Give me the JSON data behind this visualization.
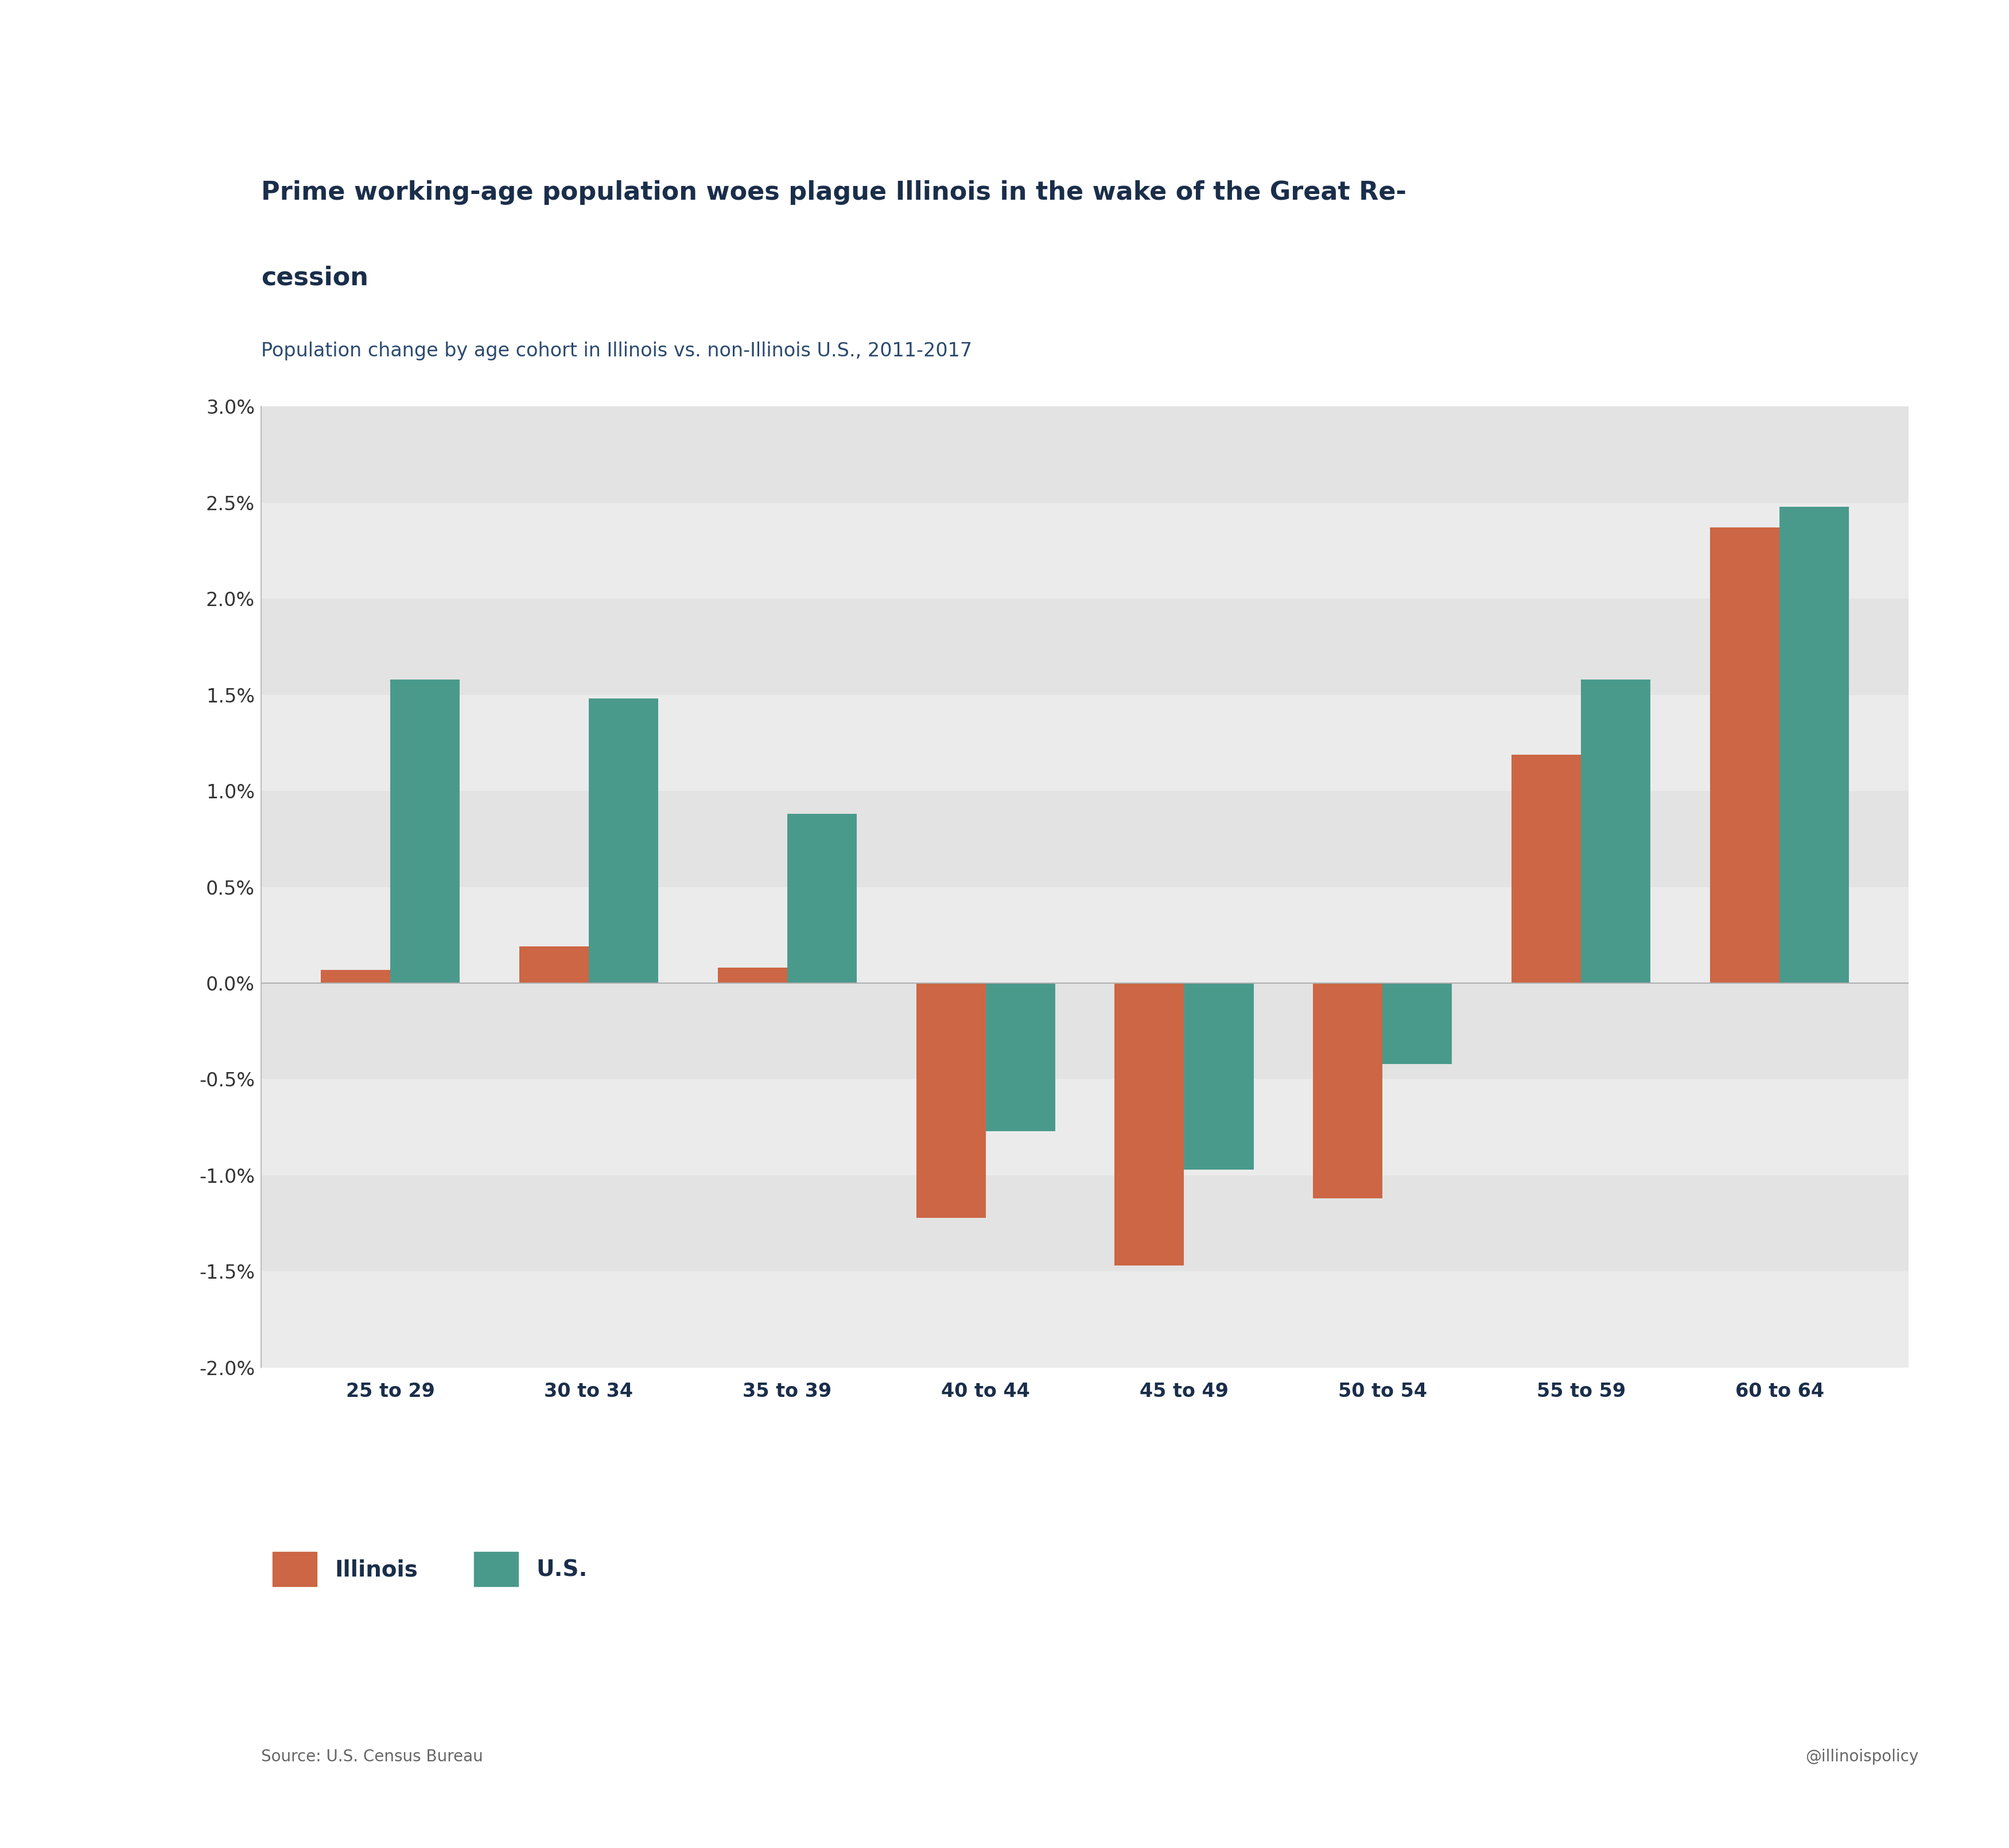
{
  "title_line1": "Prime working-age population woes plague Illinois in the wake of the Great Re-",
  "title_line2": "cession",
  "subtitle": "Population change by age cohort in Illinois vs. non-Illinois U.S., 2011-2017",
  "categories": [
    "25 to 29",
    "30 to 34",
    "35 to 39",
    "40 to 44",
    "45 to 49",
    "50 to 54",
    "55 to 59",
    "60 to 64"
  ],
  "illinois_values": [
    0.07,
    0.19,
    0.08,
    -1.22,
    -1.47,
    -1.12,
    1.19,
    2.37
  ],
  "us_values": [
    1.58,
    1.48,
    0.88,
    -0.77,
    -0.97,
    -0.42,
    1.58,
    2.48
  ],
  "illinois_color": "#CC6644",
  "us_color": "#4A9A8C",
  "ylim": [
    -2.0,
    3.0
  ],
  "yticks": [
    -2.0,
    -1.5,
    -1.0,
    -0.5,
    0.0,
    0.5,
    1.0,
    1.5,
    2.0,
    2.5,
    3.0
  ],
  "title_color": "#1a2e4a",
  "subtitle_color": "#2b4a6e",
  "background_color": "#ffffff",
  "plot_bg_color": "#ebebeb",
  "stripe_color_odd": "#e3e3e3",
  "source_text": "Source: U.S. Census Bureau",
  "watermark_text": "@illinoispolicy",
  "legend_illinois": "Illinois",
  "legend_us": "U.S.",
  "bar_width": 0.35,
  "title_fontsize": 32,
  "subtitle_fontsize": 24,
  "tick_fontsize": 22,
  "legend_fontsize": 28,
  "source_fontsize": 20
}
